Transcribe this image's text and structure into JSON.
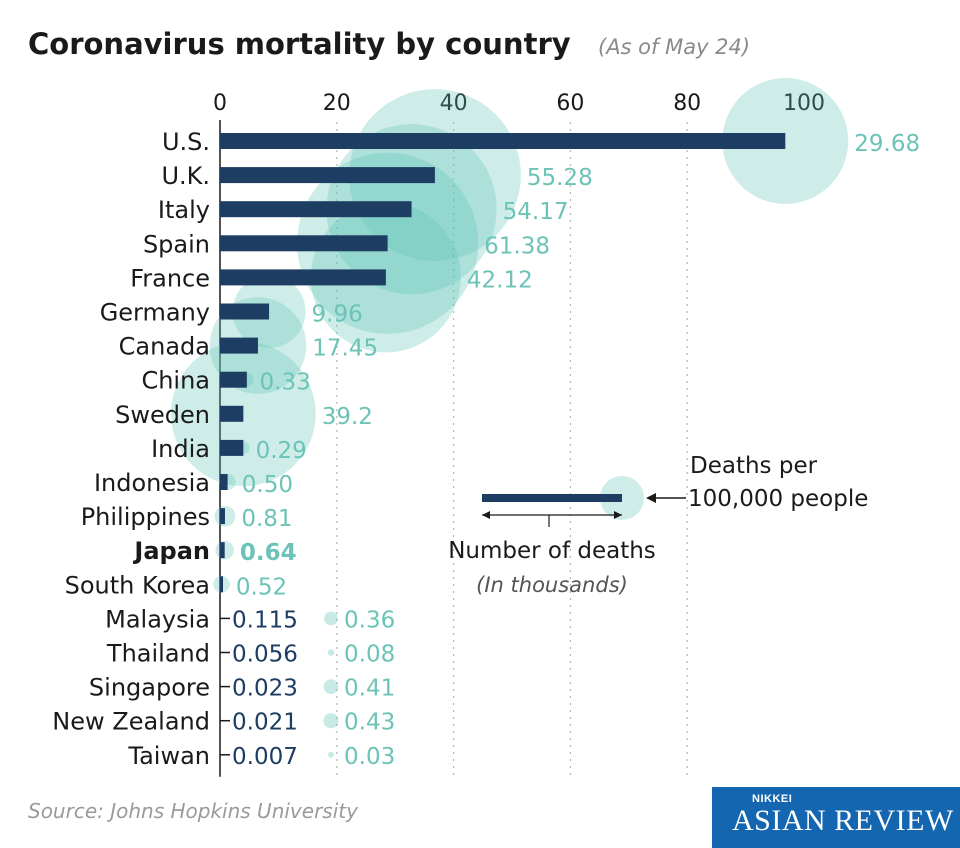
{
  "header": {
    "title": "Coronavirus mortality by country",
    "subtitle": "(As of May 24)"
  },
  "source": "Source: Johns Hopkins University",
  "logo": {
    "top": "NIKKEI",
    "main": "ASIAN REVIEW"
  },
  "colors": {
    "bar": "#1d3d63",
    "bubble": "#5ec4b6",
    "label": "#6cc3b7",
    "logo_bg": "#1566b0"
  },
  "legend": {
    "bubble_label_1": "Deaths per",
    "bubble_label_2": "100,000 people",
    "bar_label": "Number of deaths",
    "bar_unit": "(In thousands)"
  },
  "chart_data": {
    "type": "bar",
    "title": "Coronavirus mortality by country",
    "subtitle": "(As of May 24)",
    "xlabel": "Number of deaths (In thousands)",
    "xlim": [
      0,
      100
    ],
    "xticks": [
      "0",
      "20",
      "40",
      "60",
      "80",
      "100"
    ],
    "grid": true,
    "bubble_series": "Deaths per 100,000 people",
    "rows": [
      {
        "country": "U.S.",
        "deaths_k": 96.8,
        "per100k": "29.68"
      },
      {
        "country": "U.K.",
        "deaths_k": 36.8,
        "per100k": "55.28"
      },
      {
        "country": "Italy",
        "deaths_k": 32.8,
        "per100k": "54.17"
      },
      {
        "country": "Spain",
        "deaths_k": 28.7,
        "per100k": "61.38"
      },
      {
        "country": "France",
        "deaths_k": 28.4,
        "per100k": "42.12"
      },
      {
        "country": "Germany",
        "deaths_k": 8.4,
        "per100k": "9.96"
      },
      {
        "country": "Canada",
        "deaths_k": 6.5,
        "per100k": "17.45"
      },
      {
        "country": "China",
        "deaths_k": 4.6,
        "per100k": "0.33"
      },
      {
        "country": "Sweden",
        "deaths_k": 4.0,
        "per100k": "39.2"
      },
      {
        "country": "India",
        "deaths_k": 4.0,
        "per100k": "0.29"
      },
      {
        "country": "Indonesia",
        "deaths_k": 1.3,
        "per100k": "0.50"
      },
      {
        "country": "Philippines",
        "deaths_k": 0.85,
        "per100k": "0.81"
      },
      {
        "country": "Japan",
        "deaths_k": 0.8,
        "per100k": "0.64",
        "highlight": true
      },
      {
        "country": "South Korea",
        "deaths_k": 0.27,
        "per100k": "0.52"
      },
      {
        "country": "Malaysia",
        "deaths_k": 0.115,
        "deaths_label": "0.115",
        "per100k": "0.36"
      },
      {
        "country": "Thailand",
        "deaths_k": 0.056,
        "deaths_label": "0.056",
        "per100k": "0.08"
      },
      {
        "country": "Singapore",
        "deaths_k": 0.023,
        "deaths_label": "0.023",
        "per100k": "0.41"
      },
      {
        "country": "New Zealand",
        "deaths_k": 0.021,
        "deaths_label": "0.021",
        "per100k": "0.43"
      },
      {
        "country": "Taiwan",
        "deaths_k": 0.007,
        "deaths_label": "0.007",
        "per100k": "0.03"
      }
    ]
  }
}
